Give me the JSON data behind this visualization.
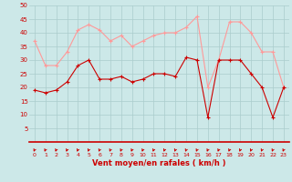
{
  "x": [
    0,
    1,
    2,
    3,
    4,
    5,
    6,
    7,
    8,
    9,
    10,
    11,
    12,
    13,
    14,
    15,
    16,
    17,
    18,
    19,
    20,
    21,
    22,
    23
  ],
  "wind_avg": [
    19,
    18,
    19,
    22,
    28,
    30,
    23,
    23,
    24,
    22,
    23,
    25,
    25,
    24,
    31,
    30,
    9,
    30,
    30,
    30,
    25,
    20,
    9,
    20
  ],
  "wind_gust": [
    37,
    28,
    28,
    33,
    41,
    43,
    41,
    37,
    39,
    35,
    37,
    39,
    40,
    40,
    42,
    46,
    20,
    30,
    44,
    44,
    40,
    33,
    33,
    20
  ],
  "xlabel": "Vent moyen/en rafales ( km/h )",
  "ylim_min": 0,
  "ylim_max": 50,
  "yticks": [
    5,
    10,
    15,
    20,
    25,
    30,
    35,
    40,
    45,
    50
  ],
  "bg_color": "#cce8e8",
  "grid_color": "#aacccc",
  "avg_color": "#cc0000",
  "gust_color": "#ff9999",
  "arrow_color": "#cc0000",
  "xlabel_color": "#cc0000",
  "tick_color": "#cc0000"
}
